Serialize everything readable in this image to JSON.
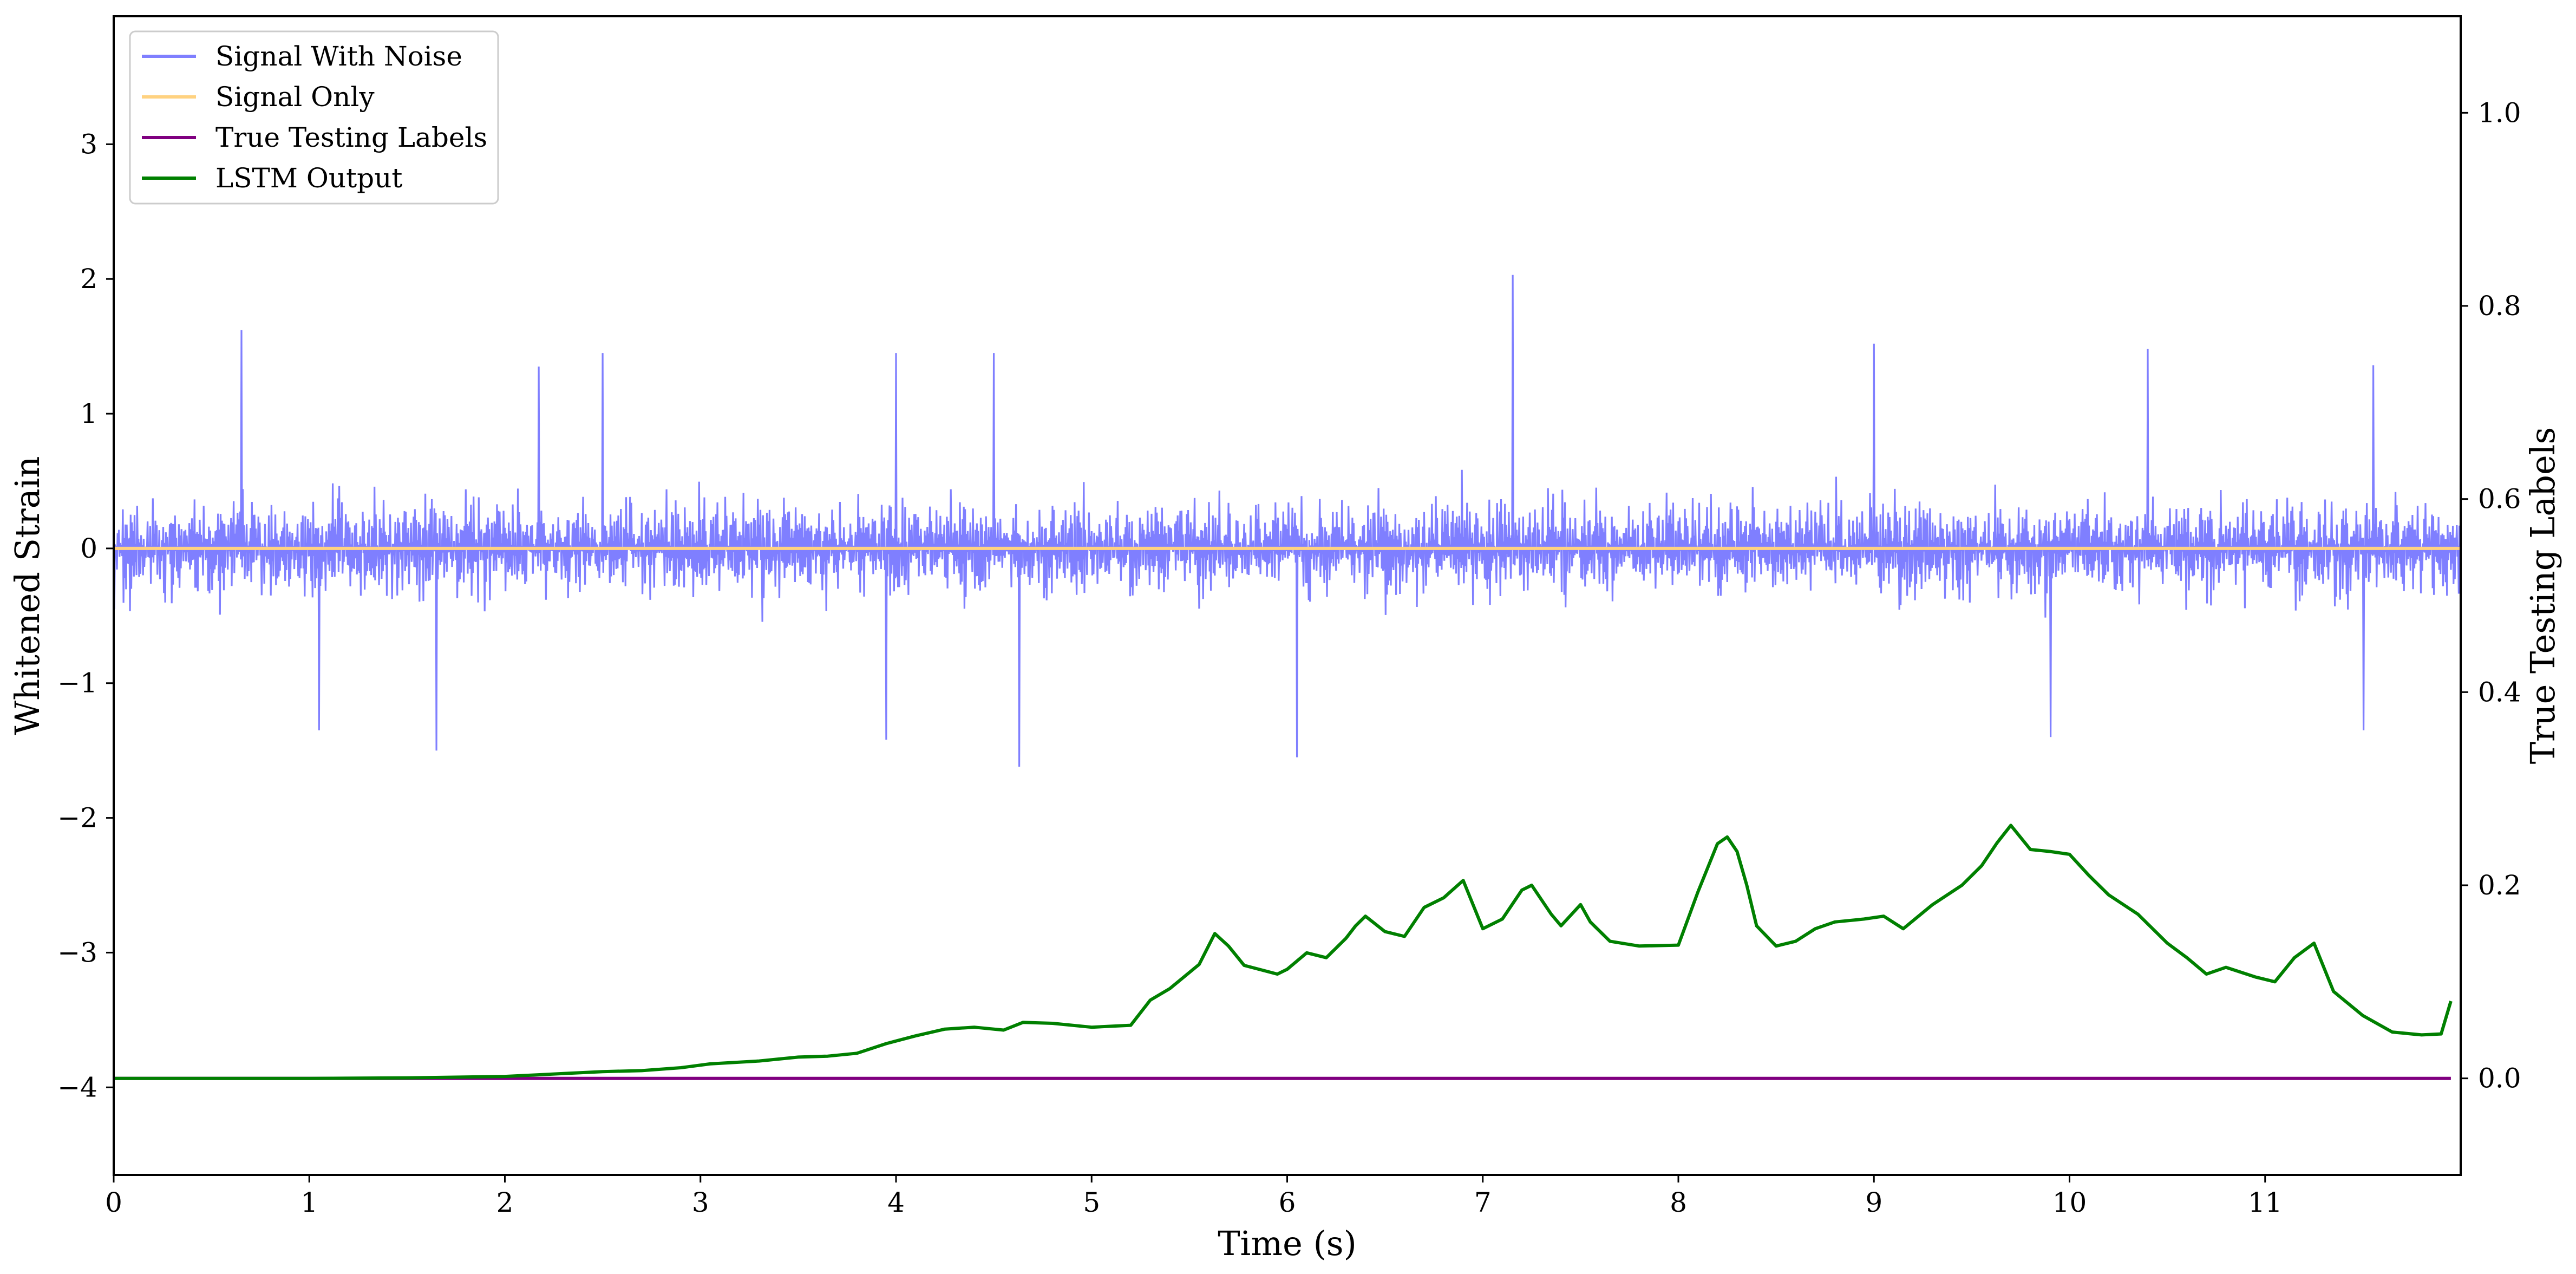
{
  "chart_data": {
    "type": "line",
    "title": "",
    "xlabel": "Time (s)",
    "ylabel": "Whitened Strain",
    "y2label": "True Testing Labels",
    "xlim": [
      0,
      12
    ],
    "ylim": [
      -4.65,
      3.95
    ],
    "y2lim": [
      -0.1,
      1.1
    ],
    "xticks": [
      0,
      1,
      2,
      3,
      4,
      5,
      6,
      7,
      8,
      9,
      10,
      11
    ],
    "yticks": [
      -4,
      -3,
      -2,
      -1,
      0,
      1,
      2,
      3
    ],
    "y2ticks": [
      0.0,
      0.2,
      0.4,
      0.6,
      0.8,
      1.0
    ],
    "xtick_labels": [
      "0",
      "1",
      "2",
      "3",
      "4",
      "5",
      "6",
      "7",
      "8",
      "9",
      "10",
      "11"
    ],
    "ytick_labels": [
      "−4",
      "−3",
      "−2",
      "−1",
      "0",
      "1",
      "2",
      "3"
    ],
    "y2tick_labels": [
      "0.0",
      "0.2",
      "0.4",
      "0.6",
      "0.8",
      "1.0"
    ],
    "grid": false,
    "legend_position": "top-left",
    "series": [
      {
        "name": "Signal With Noise",
        "axis": "left",
        "color": "#7f7fff",
        "style": "noise",
        "x_range": [
          0,
          12
        ],
        "envelope_typical": [
          -0.75,
          0.75
        ],
        "peaks": [
          {
            "x": 0.65,
            "y": 1.62
          },
          {
            "x": 2.17,
            "y": 1.35
          },
          {
            "x": 2.5,
            "y": 1.45
          },
          {
            "x": 4.0,
            "y": 1.45
          },
          {
            "x": 4.5,
            "y": 1.45
          },
          {
            "x": 7.15,
            "y": 2.03
          },
          {
            "x": 9.0,
            "y": 1.52
          },
          {
            "x": 10.4,
            "y": 1.48
          },
          {
            "x": 11.55,
            "y": 1.36
          }
        ],
        "troughs": [
          {
            "x": 1.65,
            "y": -1.5
          },
          {
            "x": 4.63,
            "y": -1.62
          },
          {
            "x": 6.05,
            "y": -1.55
          },
          {
            "x": 3.95,
            "y": -1.42
          },
          {
            "x": 1.05,
            "y": -1.35
          },
          {
            "x": 9.9,
            "y": -1.4
          },
          {
            "x": 11.5,
            "y": -1.35
          }
        ]
      },
      {
        "name": "Signal Only",
        "axis": "left",
        "color": "#ffd280",
        "x": [
          0,
          12
        ],
        "y": [
          0,
          0
        ]
      },
      {
        "name": "True Testing Labels",
        "axis": "right",
        "color": "#800080",
        "x": [
          0,
          11.95
        ],
        "y": [
          0,
          0
        ]
      },
      {
        "name": "LSTM Output",
        "axis": "right",
        "color": "#008000",
        "x": [
          0,
          1.0,
          1.5,
          2.0,
          2.3,
          2.5,
          2.7,
          2.9,
          3.05,
          3.3,
          3.5,
          3.65,
          3.8,
          3.95,
          4.1,
          4.25,
          4.4,
          4.55,
          4.65,
          4.8,
          5.0,
          5.2,
          5.3,
          5.4,
          5.55,
          5.63,
          5.7,
          5.78,
          5.95,
          6.0,
          6.1,
          6.2,
          6.3,
          6.35,
          6.4,
          6.5,
          6.6,
          6.7,
          6.8,
          6.9,
          7.0,
          7.1,
          7.2,
          7.25,
          7.35,
          7.4,
          7.5,
          7.55,
          7.65,
          7.8,
          8.0,
          8.1,
          8.2,
          8.25,
          8.3,
          8.35,
          8.4,
          8.5,
          8.6,
          8.7,
          8.8,
          8.95,
          9.05,
          9.15,
          9.3,
          9.45,
          9.55,
          9.63,
          9.7,
          9.8,
          9.9,
          10.0,
          10.1,
          10.2,
          10.35,
          10.5,
          10.6,
          10.7,
          10.8,
          10.95,
          11.05,
          11.15,
          11.25,
          11.35,
          11.5,
          11.65,
          11.8,
          11.9,
          11.95
        ],
        "y": [
          0.0,
          0.0,
          0.0005,
          0.002,
          0.005,
          0.007,
          0.008,
          0.011,
          0.015,
          0.018,
          0.022,
          0.023,
          0.026,
          0.036,
          0.044,
          0.051,
          0.053,
          0.05,
          0.058,
          0.057,
          0.053,
          0.055,
          0.081,
          0.093,
          0.118,
          0.15,
          0.137,
          0.117,
          0.108,
          0.113,
          0.13,
          0.125,
          0.145,
          0.158,
          0.168,
          0.152,
          0.147,
          0.177,
          0.187,
          0.205,
          0.155,
          0.165,
          0.195,
          0.2,
          0.17,
          0.158,
          0.18,
          0.162,
          0.142,
          0.137,
          0.138,
          0.193,
          0.243,
          0.25,
          0.235,
          0.2,
          0.158,
          0.137,
          0.142,
          0.155,
          0.162,
          0.165,
          0.168,
          0.155,
          0.18,
          0.2,
          0.22,
          0.244,
          0.262,
          0.237,
          0.235,
          0.232,
          0.21,
          0.19,
          0.17,
          0.14,
          0.125,
          0.108,
          0.115,
          0.105,
          0.1,
          0.125,
          0.14,
          0.09,
          0.065,
          0.048,
          0.045,
          0.046,
          0.08
        ]
      }
    ]
  }
}
